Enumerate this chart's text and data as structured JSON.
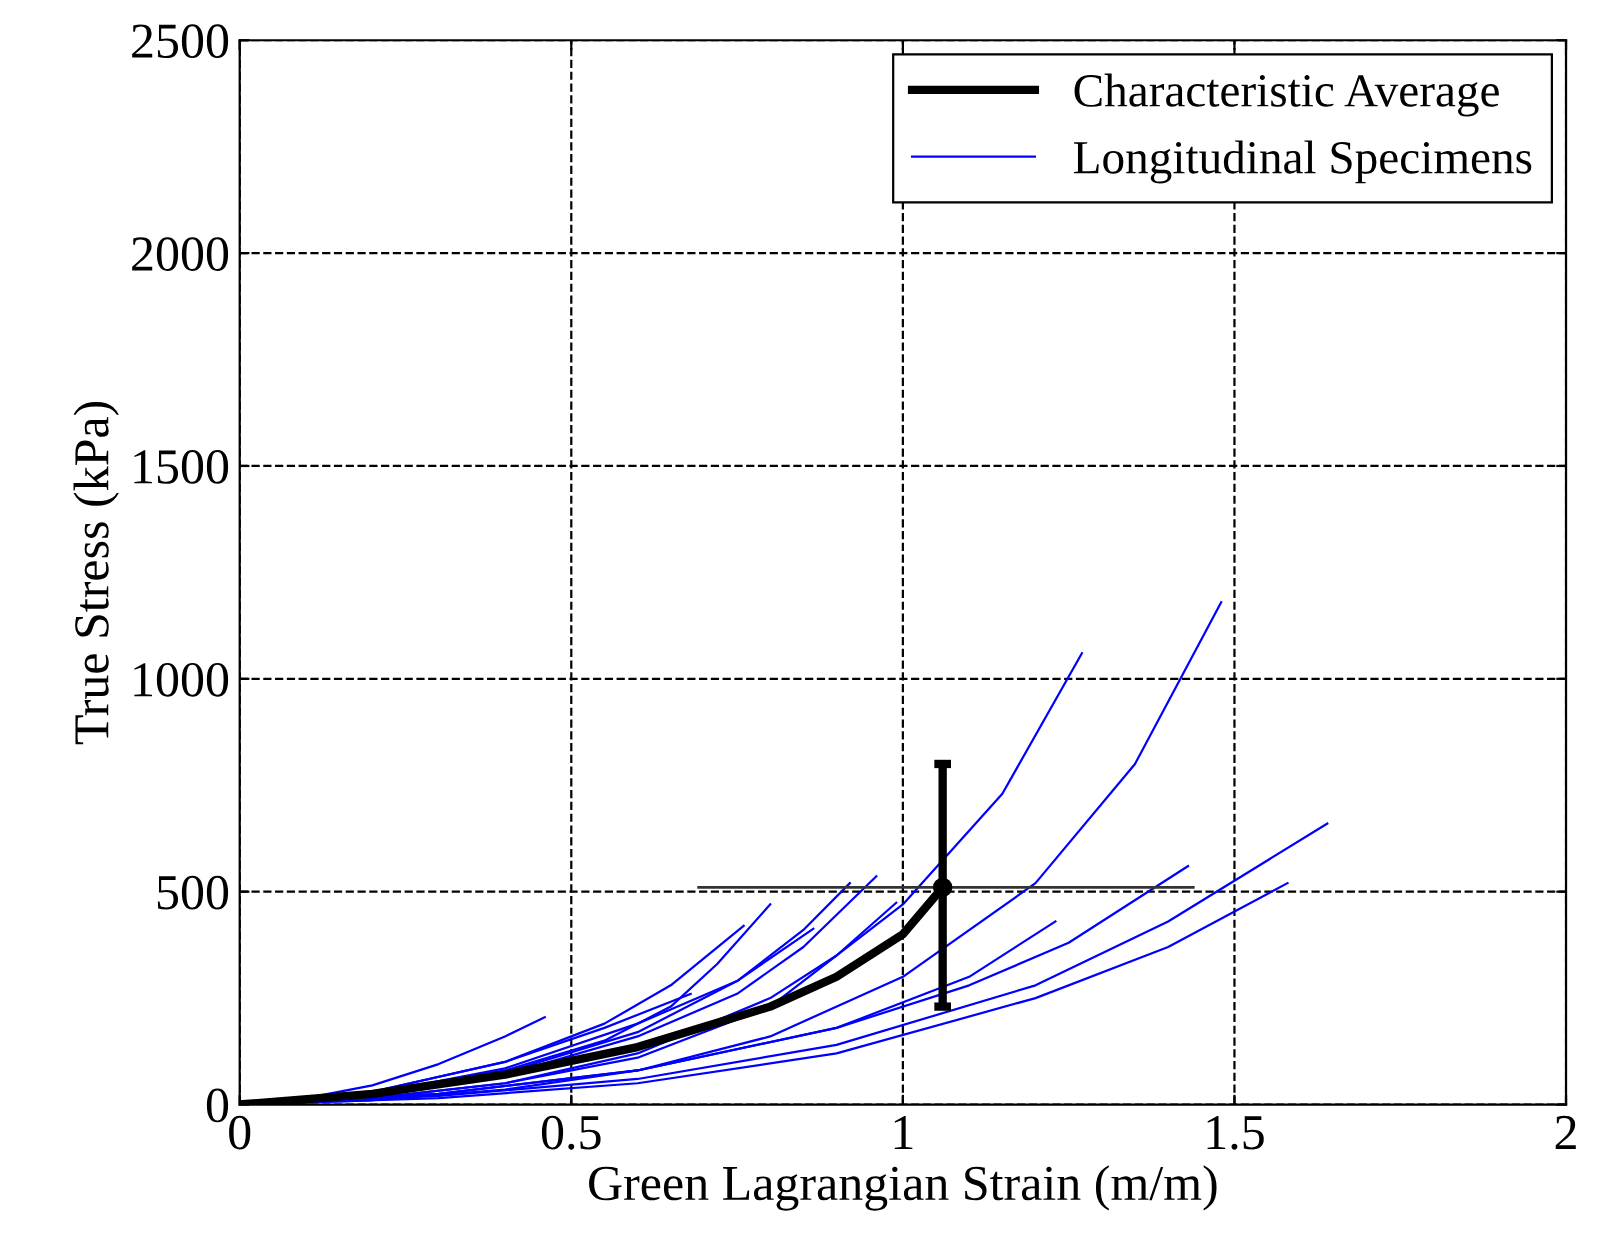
{
  "chart_data": {
    "type": "line",
    "xlabel": "Green Lagrangian Strain (m/m)",
    "ylabel": "True Stress (kPa)",
    "xlim": [
      0,
      2
    ],
    "ylim": [
      0,
      2500
    ],
    "xticks": [
      0,
      0.5,
      1,
      1.5,
      2
    ],
    "yticks": [
      0,
      500,
      1000,
      1500,
      2000,
      2500
    ],
    "grid": true,
    "legend": "top right",
    "marker": "none",
    "line_style": "solid",
    "series": [
      {
        "name": "Characteristic Average",
        "color": "#000000",
        "x": [
          0,
          0.2,
          0.4,
          0.6,
          0.8,
          0.9,
          1.0,
          1.06
        ],
        "values": [
          0,
          25,
          70,
          135,
          230,
          300,
          400,
          510
        ],
        "errors": [
          null,
          null,
          null,
          null,
          null,
          null,
          null,
          [
            230,
            800
          ]
        ],
        "xerrors": [
          null,
          null,
          null,
          null,
          null,
          null,
          null,
          [
            0.69,
            1.44
          ]
        ]
      },
      {
        "name": "Longitudinal Specimens",
        "color": "#0000ff",
        "x": [
          0,
          0.1,
          0.2,
          0.3,
          0.4,
          0.46
        ],
        "values": [
          0,
          15,
          45,
          95,
          160,
          205
        ]
      },
      {
        "color": "#0000ff",
        "x": [
          0,
          0.2,
          0.4,
          0.55,
          0.65,
          0.72,
          0.8
        ],
        "values": [
          0,
          25,
          80,
          150,
          230,
          330,
          470
        ]
      },
      {
        "color": "#0000ff",
        "x": [
          0,
          0.2,
          0.4,
          0.55,
          0.65,
          0.76
        ],
        "values": [
          0,
          30,
          100,
          190,
          280,
          420
        ]
      },
      {
        "color": "#0000ff",
        "x": [
          0,
          0.2,
          0.4,
          0.55,
          0.68
        ],
        "values": [
          0,
          30,
          100,
          180,
          260
        ]
      },
      {
        "color": "#0000ff",
        "x": [
          0,
          0.2,
          0.4,
          0.6,
          0.75,
          0.865
        ],
        "values": [
          0,
          25,
          85,
          190,
          290,
          413
        ]
      },
      {
        "color": "#0000ff",
        "x": [
          0,
          0.2,
          0.4,
          0.6,
          0.75,
          0.85,
          0.96
        ],
        "values": [
          0,
          20,
          70,
          160,
          260,
          370,
          536
        ]
      },
      {
        "color": "#0000ff",
        "x": [
          0,
          0.2,
          0.4,
          0.6,
          0.75,
          0.85,
          0.92
        ],
        "values": [
          0,
          20,
          75,
          170,
          290,
          410,
          520
        ]
      },
      {
        "color": "#0000ff",
        "x": [
          0,
          0.2,
          0.4,
          0.6,
          0.8,
          0.9,
          0.99
        ],
        "values": [
          0,
          15,
          50,
          120,
          250,
          350,
          474
        ]
      },
      {
        "color": "#0000ff",
        "x": [
          0,
          0.2,
          0.4,
          0.6,
          0.8,
          1.0,
          1.15,
          1.27
        ],
        "values": [
          0,
          15,
          50,
          110,
          230,
          470,
          730,
          1060
        ]
      },
      {
        "color": "#0000ff",
        "x": [
          0,
          0.2,
          0.4,
          0.6,
          0.8,
          1.0,
          1.2,
          1.35,
          1.48
        ],
        "values": [
          0,
          10,
          35,
          80,
          160,
          300,
          520,
          800,
          1180
        ]
      },
      {
        "color": "#0000ff",
        "x": [
          0,
          0.3,
          0.6,
          0.9,
          1.1,
          1.25,
          1.43
        ],
        "values": [
          0,
          25,
          80,
          180,
          280,
          380,
          560
        ]
      },
      {
        "color": "#0000ff",
        "x": [
          0,
          0.3,
          0.6,
          0.9,
          1.2,
          1.4,
          1.64
        ],
        "values": [
          0,
          20,
          60,
          140,
          280,
          430,
          660
        ]
      },
      {
        "color": "#0000ff",
        "x": [
          0,
          0.3,
          0.6,
          0.9,
          1.2,
          1.4,
          1.58
        ],
        "values": [
          0,
          15,
          50,
          120,
          250,
          370,
          520
        ]
      },
      {
        "color": "#0000ff",
        "x": [
          0,
          0.3,
          0.6,
          0.9,
          1.1,
          1.23
        ],
        "values": [
          0,
          25,
          80,
          180,
          300,
          430
        ]
      }
    ]
  }
}
